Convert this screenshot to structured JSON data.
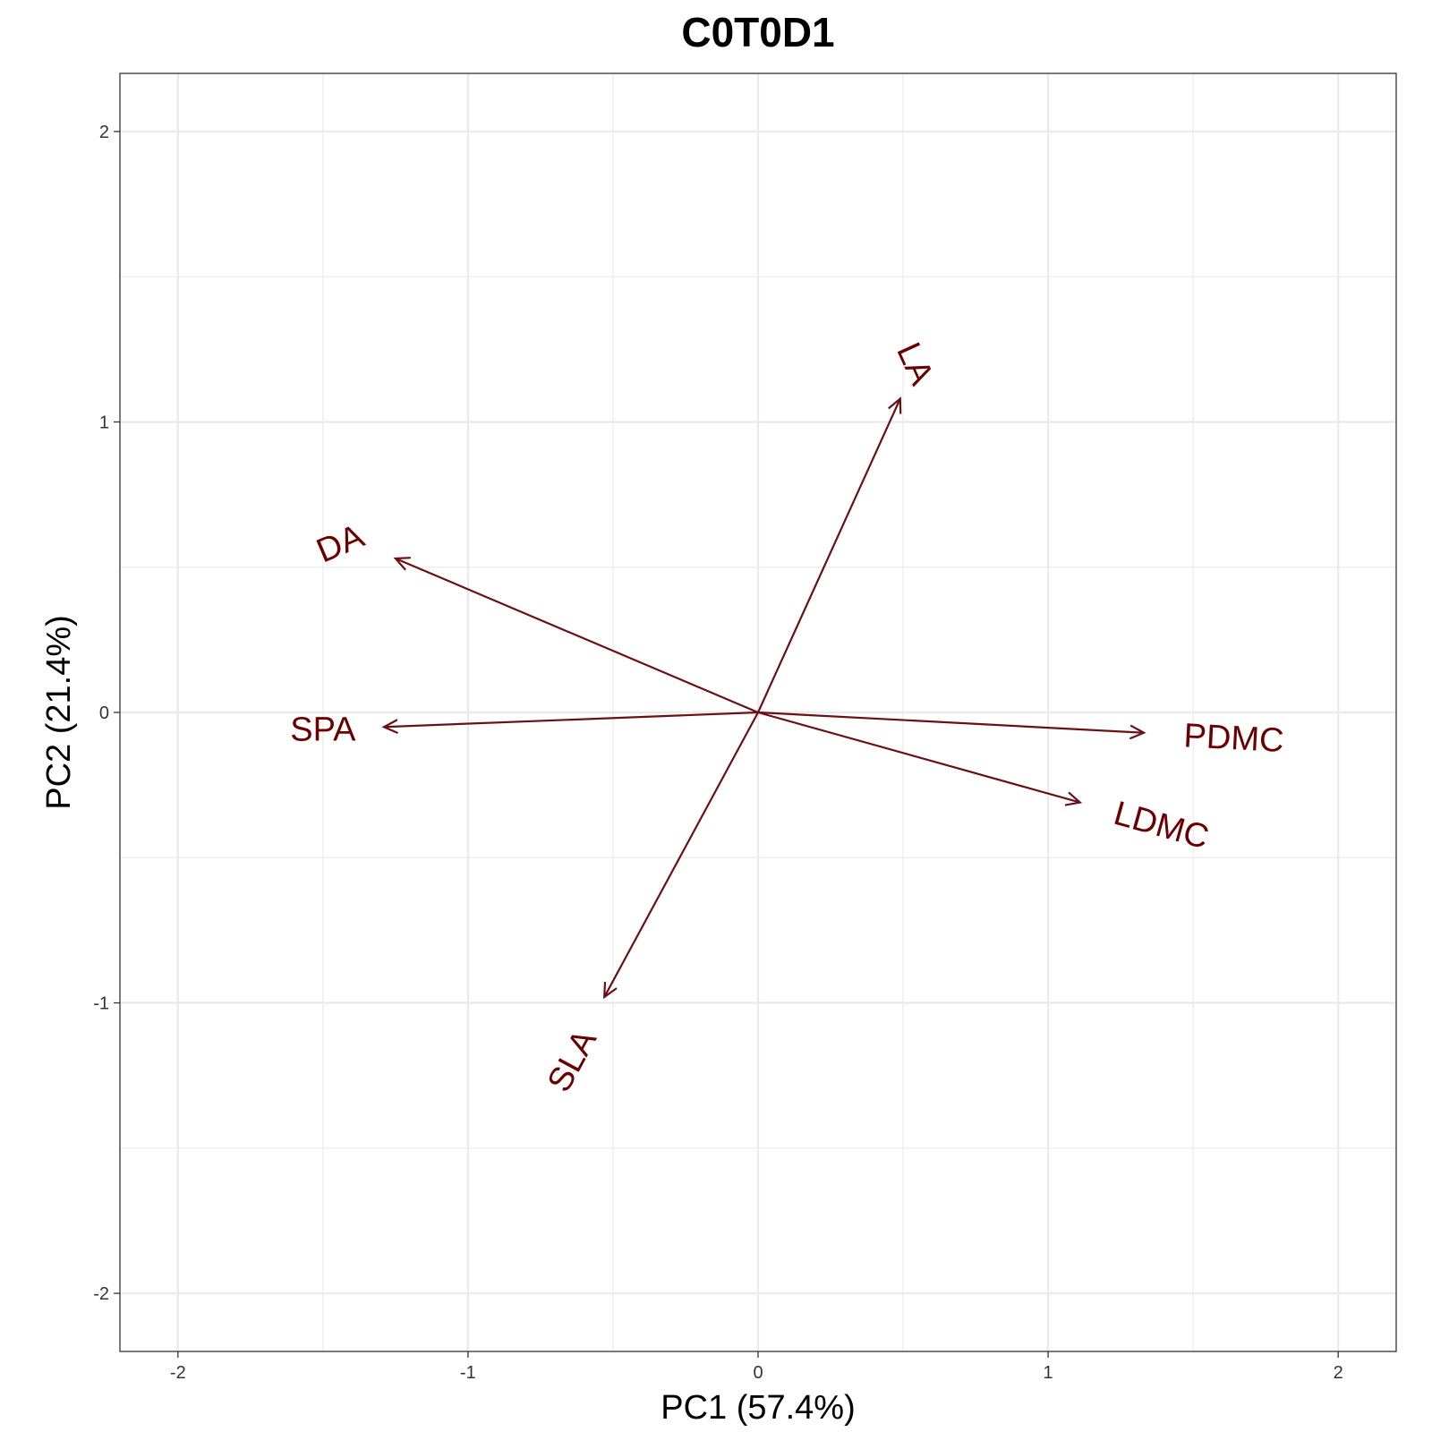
{
  "chart_data": {
    "type": "biplot",
    "title": "C0T0D1",
    "xlabel": "PC1 (57.4%)",
    "ylabel": "PC2 (21.4%)",
    "xlim": [
      -2.2,
      2.2
    ],
    "ylim": [
      -2.2,
      2.2
    ],
    "xticks": [
      -2,
      -1,
      0,
      1,
      2
    ],
    "yticks": [
      -2,
      -1,
      0,
      1,
      2
    ],
    "grid": true,
    "arrow_color": "#6b1014",
    "label_color": "#6b0000",
    "grid_color": "#ebebeb",
    "vectors": [
      {
        "name": "LA",
        "x": 0.49,
        "y": 1.08,
        "label_x": 0.54,
        "label_y": 1.2,
        "angle": 65.6
      },
      {
        "name": "DA",
        "x": -1.25,
        "y": 0.53,
        "label_x": -1.44,
        "label_y": 0.58,
        "angle": -23.0
      },
      {
        "name": "SPA",
        "x": -1.29,
        "y": -0.05,
        "label_x": -1.5,
        "label_y": -0.06,
        "angle": 0
      },
      {
        "name": "PDMC",
        "x": 1.33,
        "y": -0.07,
        "label_x": 1.64,
        "label_y": -0.09,
        "angle": 3.0
      },
      {
        "name": "LDMC",
        "x": 1.11,
        "y": -0.31,
        "label_x": 1.39,
        "label_y": -0.39,
        "angle": 15.6
      },
      {
        "name": "SLA",
        "x": -0.53,
        "y": -0.98,
        "label_x": -0.64,
        "label_y": -1.2,
        "angle": -61.6
      }
    ]
  }
}
